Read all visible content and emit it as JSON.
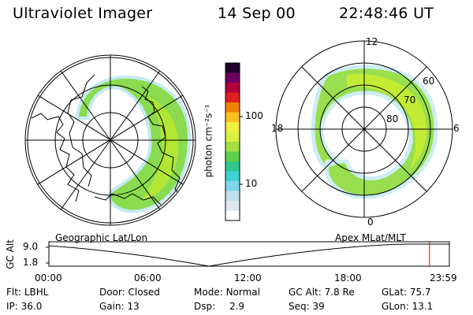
{
  "header": {
    "instrument": "Ultraviolet Imager",
    "date": "14 Sep 00",
    "time": "22:48:46 UT"
  },
  "left_panel": {
    "label": "Geographic Lat/Lon"
  },
  "colorbar": {
    "unit_label": "photon cm⁻²s⁻¹",
    "ticks": [
      "100",
      "10"
    ],
    "colors": [
      "#ffffff",
      "#dfe8ec",
      "#bfe0ea",
      "#7fd8e8",
      "#40d0d0",
      "#30c890",
      "#60d050",
      "#a0e040",
      "#d8f040",
      "#f0f040",
      "#f8c020",
      "#f08000",
      "#e02020",
      "#b00040",
      "#700060",
      "#200030"
    ]
  },
  "right_panel": {
    "label": "Apex  MLat/MLT",
    "mlt_labels": {
      "top": "12",
      "bottom": "0",
      "left": "18",
      "right": "6"
    },
    "lat_labels": [
      "60",
      "70",
      "80"
    ]
  },
  "altitude_plot": {
    "ylabel": "GC Alt",
    "yticks": [
      "9.0",
      "1.8"
    ],
    "xticks": [
      "00:00",
      "06:00",
      "12:00",
      "18:00",
      "23:59"
    ],
    "current_time_hours": 22.81,
    "curve_minimum_hours": 9.6,
    "marker_color": "#d00000"
  },
  "info": {
    "filter": {
      "label": "Flt:",
      "value": "LBHL"
    },
    "ip": {
      "label": "IP:",
      "value": "36.0"
    },
    "door": {
      "label": "Door:",
      "value": "Closed"
    },
    "gain": {
      "label": "Gain:",
      "value": "13"
    },
    "mode": {
      "label": "Mode:",
      "value": "Normal"
    },
    "dsp": {
      "label": "Dsp:",
      "value": "2.9"
    },
    "gcalt": {
      "label": "GC Alt:",
      "value": "7.8 Re"
    },
    "seq": {
      "label": "Seq:",
      "value": "39"
    },
    "glat": {
      "label": "GLat:",
      "value": "75.7"
    },
    "glon": {
      "label": "GLon:",
      "value": "13.1"
    }
  }
}
